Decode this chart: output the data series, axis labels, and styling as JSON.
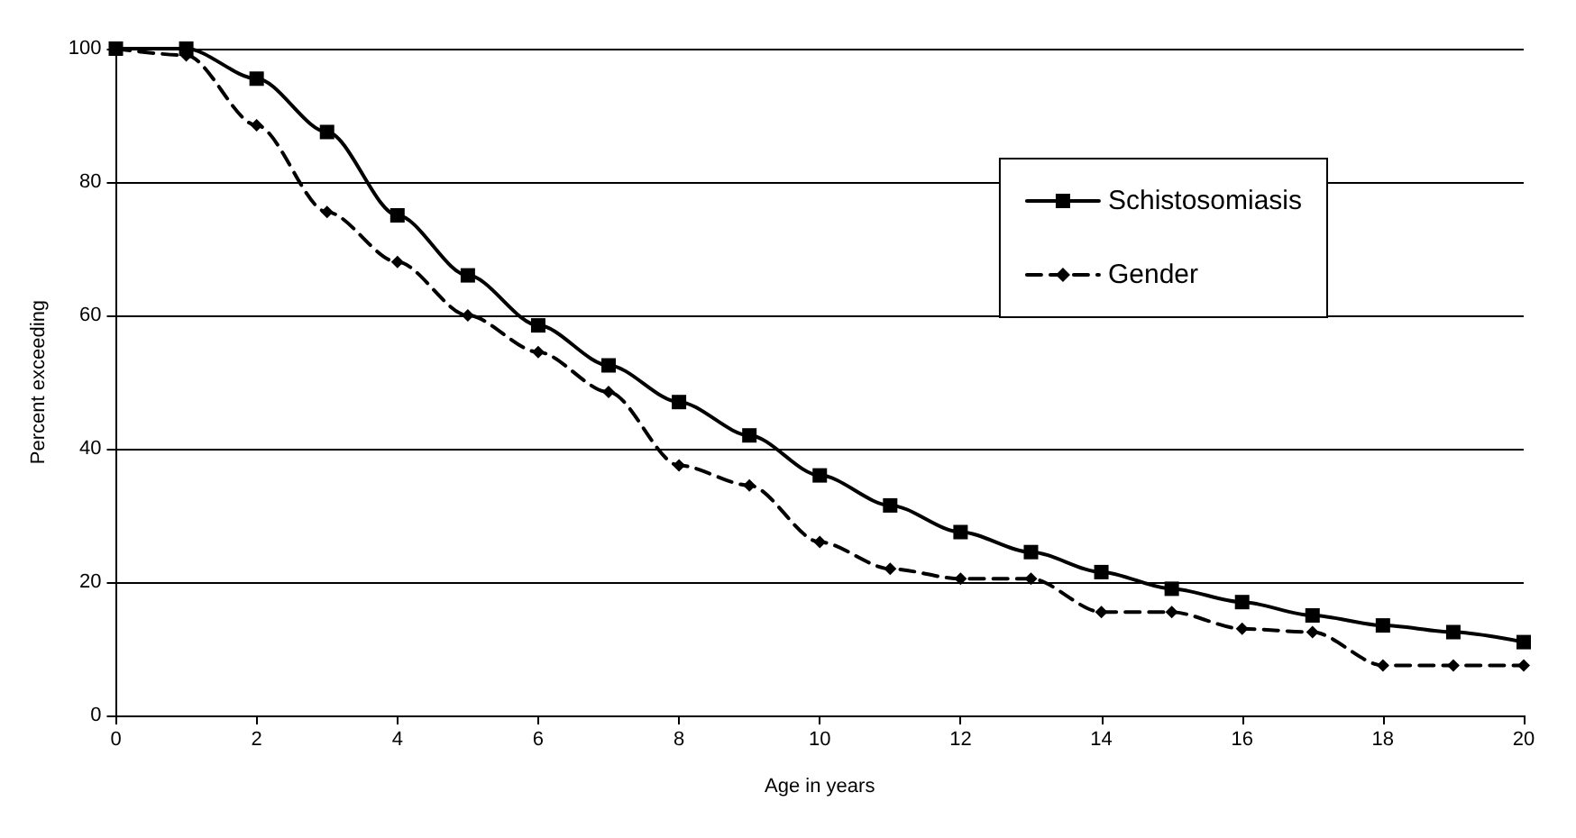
{
  "chart_data": {
    "type": "line",
    "xlabel": "Age in years",
    "ylabel": "Percent exceeding",
    "x": [
      0,
      1,
      2,
      3,
      4,
      5,
      6,
      7,
      8,
      9,
      10,
      11,
      12,
      13,
      14,
      15,
      16,
      17,
      18,
      19,
      20
    ],
    "series": [
      {
        "name": "Schistosomiasis",
        "color": "#000000",
        "marker": "square",
        "line_style": "solid",
        "values": [
          100,
          100,
          95.5,
          87.5,
          75,
          66,
          58.5,
          52.5,
          47,
          42,
          36,
          31.5,
          27.5,
          24.5,
          21.5,
          19,
          17,
          15,
          13.5,
          12.5,
          11
        ]
      },
      {
        "name": "Gender",
        "color": "#000000",
        "marker": "diamond",
        "line_style": "dashed",
        "values": [
          100,
          99,
          88.5,
          75.5,
          68,
          60,
          54.5,
          48.5,
          37.5,
          34.5,
          26,
          22,
          20.5,
          20.5,
          15.5,
          15.5,
          13,
          12.5,
          7.5,
          7.5,
          7.5
        ]
      }
    ],
    "xlim": [
      0,
      20
    ],
    "xticks": [
      0,
      2,
      4,
      6,
      8,
      10,
      12,
      14,
      16,
      18,
      20
    ],
    "ylim": [
      0,
      100
    ],
    "yticks": [
      0,
      20,
      40,
      60,
      80,
      100
    ],
    "grid": "y",
    "legend": "top right"
  }
}
